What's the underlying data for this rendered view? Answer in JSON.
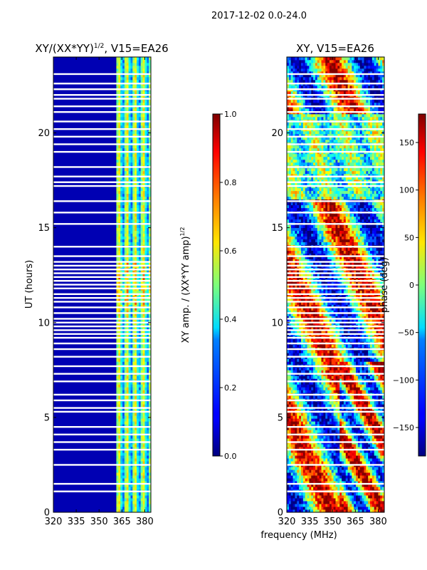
{
  "figure": {
    "title": "2017-12-02 0.0-24.0",
    "xlabel": "frequency (MHz)"
  },
  "chart_data": [
    {
      "type": "heatmap",
      "title_main": "XY/(XX*YY)",
      "title_exp": "1/2",
      "title_tail": ", V15=EA26",
      "ylabel": "UT (hours)",
      "xlim": [
        320,
        384
      ],
      "ylim": [
        0,
        24
      ],
      "xticks": [
        320,
        335,
        350,
        365,
        380
      ],
      "yticks": [
        0,
        5,
        10,
        15,
        20
      ],
      "colorbar": {
        "label_main": "XY amp. / (XX*YY amp)",
        "label_exp": "1/2",
        "range": [
          0.0,
          1.0
        ],
        "ticks": [
          "0.0",
          "0.2",
          "0.4",
          "0.6",
          "0.8",
          "1.0"
        ],
        "tick_values": [
          0.0,
          0.2,
          0.4,
          0.6,
          0.8,
          1.0
        ],
        "colormap": "jet"
      },
      "description_values": {
        "low_band_amplitude": 0.05,
        "high_band_amplitude_range": [
          0.3,
          0.8
        ],
        "high_band_start_mhz": 361
      }
    },
    {
      "type": "heatmap",
      "title": "XY, V15=EA26",
      "ylabel": "",
      "xlim": [
        320,
        384
      ],
      "ylim": [
        0,
        24
      ],
      "xticks": [
        320,
        335,
        350,
        365,
        380
      ],
      "yticks": [
        0,
        5,
        10,
        15,
        20
      ],
      "colorbar": {
        "label": "phase (deg)",
        "range": [
          -180,
          180
        ],
        "ticks": [
          "−150",
          "−100",
          "−50",
          "0",
          "50",
          "100",
          "150"
        ],
        "tick_values": [
          -150,
          -100,
          -50,
          0,
          50,
          100,
          150
        ],
        "colormap": "jet"
      }
    }
  ],
  "flagged_hours": [
    1.1,
    1.5,
    2.5,
    3.3,
    3.7,
    4.1,
    4.5,
    5.3,
    5.5,
    5.9,
    6.2,
    6.9,
    7.3,
    7.7,
    8.2,
    8.6,
    8.9,
    9.2,
    9.4,
    9.6,
    9.8,
    10.0,
    10.2,
    10.5,
    10.8,
    11.1,
    11.3,
    11.5,
    11.8,
    12.0,
    12.2,
    12.4,
    12.6,
    12.8,
    13.0,
    13.2,
    13.5,
    14.0,
    15.2,
    15.8,
    16.4,
    17.2,
    17.4,
    17.7,
    18.2,
    19.0,
    19.4,
    19.8,
    20.2,
    20.6,
    21.1,
    21.4,
    21.8,
    22.0,
    22.3,
    22.6,
    23.1
  ],
  "colors": {
    "background": "#ffffff",
    "flag": "#ffffff",
    "axis": "#000000"
  }
}
